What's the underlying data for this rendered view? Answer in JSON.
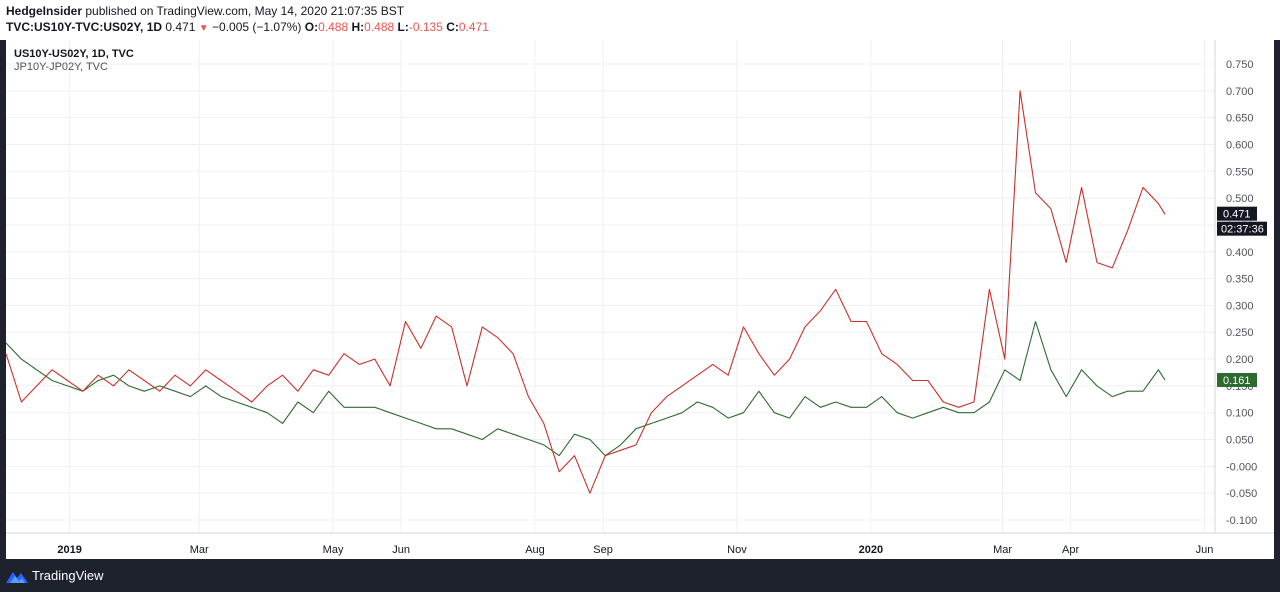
{
  "header": {
    "publisher": "HedgeInsider",
    "published_text": "published on TradingView.com, May 14, 2020 21:07:35 BST",
    "symbol": "TVC:US10Y-TVC:US02Y, 1D",
    "last": "0.471",
    "change": "−0.005 (−1.07%)",
    "o_label": "O:",
    "o_value": "0.488",
    "h_label": "H:",
    "h_value": "0.488",
    "l_label": "L:",
    "l_value": "-0.135",
    "c_label": "C:",
    "c_value": "0.471"
  },
  "legend": {
    "series1": "US10Y-US02Y, 1D, TVC",
    "series2": "JP10Y-JP02Y, TVC"
  },
  "footer": {
    "brand": "TradingView"
  },
  "colors": {
    "us": "#c8312b",
    "jp": "#2e6b2e",
    "down": "#ef5350",
    "frame": "#1e222d"
  },
  "chart_data": {
    "type": "line",
    "title": "",
    "xlabel": "",
    "ylabel": "",
    "ylim": [
      -0.12,
      0.79
    ],
    "y_ticks": [
      "0.750",
      "0.700",
      "0.650",
      "0.600",
      "0.550",
      "0.500",
      "0.450",
      "0.400",
      "0.350",
      "0.300",
      "0.250",
      "0.200",
      "0.150",
      "0.100",
      "0.050",
      "-0.000",
      "-0.050",
      "-0.100"
    ],
    "x_labels": [
      "2019",
      "Mar",
      "May",
      "Jun",
      "Aug",
      "Sep",
      "Nov",
      "2020",
      "Mar",
      "Apr",
      "Jun"
    ],
    "price_labels": {
      "us_last": "0.471",
      "countdown": "02:37:36",
      "jp_last": "0.161"
    },
    "series": [
      {
        "name": "US10Y-US02Y",
        "x": [
          "2018-12-03",
          "2018-12-10",
          "2018-12-17",
          "2018-12-24",
          "2018-12-31",
          "2019-01-07",
          "2019-01-14",
          "2019-01-21",
          "2019-01-28",
          "2019-02-04",
          "2019-02-11",
          "2019-02-18",
          "2019-02-25",
          "2019-03-04",
          "2019-03-11",
          "2019-03-18",
          "2019-03-25",
          "2019-04-01",
          "2019-04-08",
          "2019-04-15",
          "2019-04-22",
          "2019-04-29",
          "2019-05-06",
          "2019-05-13",
          "2019-05-20",
          "2019-05-27",
          "2019-06-03",
          "2019-06-10",
          "2019-06-17",
          "2019-06-24",
          "2019-07-01",
          "2019-07-08",
          "2019-07-15",
          "2019-07-22",
          "2019-07-29",
          "2019-08-05",
          "2019-08-12",
          "2019-08-19",
          "2019-08-26",
          "2019-09-02",
          "2019-09-09",
          "2019-09-16",
          "2019-09-23",
          "2019-09-30",
          "2019-10-07",
          "2019-10-14",
          "2019-10-21",
          "2019-10-28",
          "2019-11-04",
          "2019-11-11",
          "2019-11-18",
          "2019-11-25",
          "2019-12-02",
          "2019-12-09",
          "2019-12-16",
          "2019-12-23",
          "2019-12-30",
          "2020-01-06",
          "2020-01-13",
          "2020-01-20",
          "2020-01-27",
          "2020-02-03",
          "2020-02-10",
          "2020-02-17",
          "2020-02-24",
          "2020-03-02",
          "2020-03-09",
          "2020-03-16",
          "2020-03-23",
          "2020-03-30",
          "2020-04-06",
          "2020-04-13",
          "2020-04-20",
          "2020-04-27",
          "2020-05-04",
          "2020-05-11",
          "2020-05-14"
        ],
        "values": [
          0.21,
          0.12,
          0.15,
          0.18,
          0.16,
          0.14,
          0.17,
          0.15,
          0.18,
          0.16,
          0.14,
          0.17,
          0.15,
          0.18,
          0.16,
          0.14,
          0.12,
          0.15,
          0.17,
          0.14,
          0.18,
          0.17,
          0.21,
          0.19,
          0.2,
          0.15,
          0.27,
          0.22,
          0.28,
          0.26,
          0.15,
          0.26,
          0.24,
          0.21,
          0.13,
          0.08,
          -0.01,
          0.02,
          -0.05,
          0.02,
          0.03,
          0.04,
          0.1,
          0.13,
          0.15,
          0.17,
          0.19,
          0.17,
          0.26,
          0.21,
          0.17,
          0.2,
          0.26,
          0.29,
          0.33,
          0.27,
          0.27,
          0.21,
          0.19,
          0.16,
          0.16,
          0.12,
          0.11,
          0.12,
          0.33,
          0.2,
          0.7,
          0.51,
          0.48,
          0.38,
          0.52,
          0.38,
          0.37,
          0.44,
          0.52,
          0.49,
          0.47
        ]
      },
      {
        "name": "JP10Y-JP02Y",
        "x": [
          "2018-12-03",
          "2018-12-10",
          "2018-12-17",
          "2018-12-24",
          "2018-12-31",
          "2019-01-07",
          "2019-01-14",
          "2019-01-21",
          "2019-01-28",
          "2019-02-04",
          "2019-02-11",
          "2019-02-18",
          "2019-02-25",
          "2019-03-04",
          "2019-03-11",
          "2019-03-18",
          "2019-03-25",
          "2019-04-01",
          "2019-04-08",
          "2019-04-15",
          "2019-04-22",
          "2019-04-29",
          "2019-05-06",
          "2019-05-13",
          "2019-05-20",
          "2019-05-27",
          "2019-06-03",
          "2019-06-10",
          "2019-06-17",
          "2019-06-24",
          "2019-07-01",
          "2019-07-08",
          "2019-07-15",
          "2019-07-22",
          "2019-07-29",
          "2019-08-05",
          "2019-08-12",
          "2019-08-19",
          "2019-08-26",
          "2019-09-02",
          "2019-09-09",
          "2019-09-16",
          "2019-09-23",
          "2019-09-30",
          "2019-10-07",
          "2019-10-14",
          "2019-10-21",
          "2019-10-28",
          "2019-11-04",
          "2019-11-11",
          "2019-11-18",
          "2019-11-25",
          "2019-12-02",
          "2019-12-09",
          "2019-12-16",
          "2019-12-23",
          "2019-12-30",
          "2020-01-06",
          "2020-01-13",
          "2020-01-20",
          "2020-01-27",
          "2020-02-03",
          "2020-02-10",
          "2020-02-17",
          "2020-02-24",
          "2020-03-02",
          "2020-03-09",
          "2020-03-16",
          "2020-03-23",
          "2020-03-30",
          "2020-04-06",
          "2020-04-13",
          "2020-04-20",
          "2020-04-27",
          "2020-05-04",
          "2020-05-11",
          "2020-05-14"
        ],
        "values": [
          0.23,
          0.2,
          0.18,
          0.16,
          0.15,
          0.14,
          0.16,
          0.17,
          0.15,
          0.14,
          0.15,
          0.14,
          0.13,
          0.15,
          0.13,
          0.12,
          0.11,
          0.1,
          0.08,
          0.12,
          0.1,
          0.14,
          0.11,
          0.11,
          0.11,
          0.1,
          0.09,
          0.08,
          0.07,
          0.07,
          0.06,
          0.05,
          0.07,
          0.06,
          0.05,
          0.04,
          0.02,
          0.06,
          0.05,
          0.02,
          0.04,
          0.07,
          0.08,
          0.09,
          0.1,
          0.12,
          0.11,
          0.09,
          0.1,
          0.14,
          0.1,
          0.09,
          0.13,
          0.11,
          0.12,
          0.11,
          0.11,
          0.13,
          0.1,
          0.09,
          0.1,
          0.11,
          0.1,
          0.1,
          0.12,
          0.18,
          0.16,
          0.27,
          0.18,
          0.13,
          0.18,
          0.15,
          0.13,
          0.14,
          0.14,
          0.18,
          0.161
        ]
      }
    ]
  }
}
